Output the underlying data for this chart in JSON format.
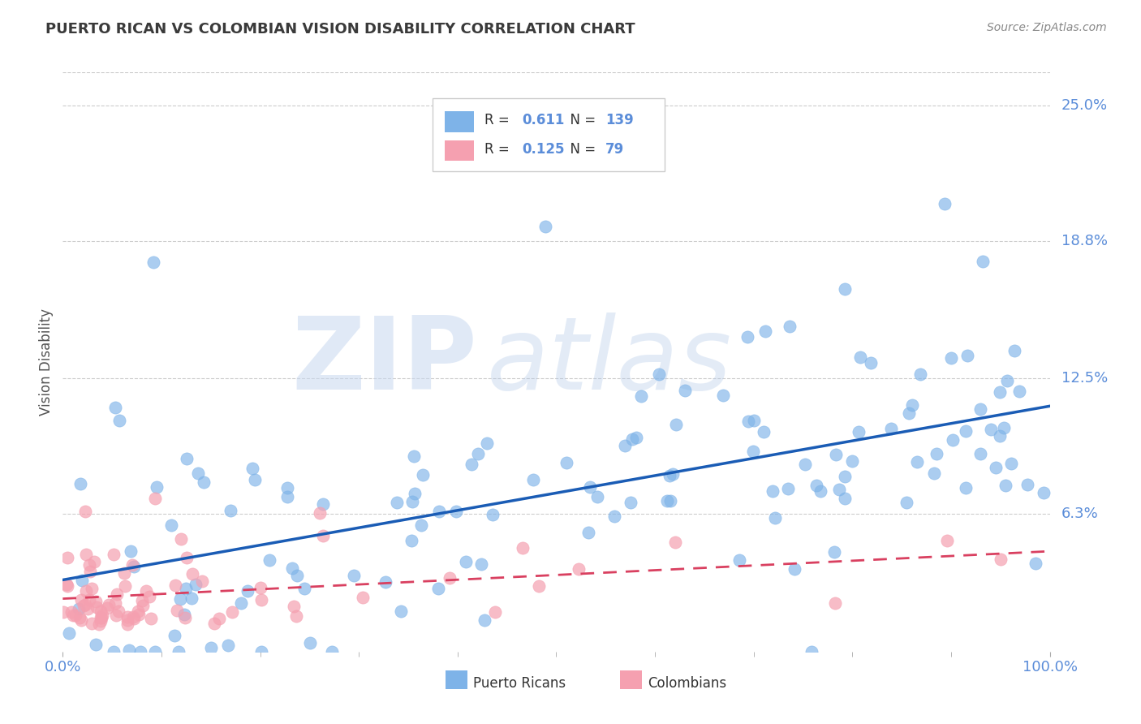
{
  "title": "PUERTO RICAN VS COLOMBIAN VISION DISABILITY CORRELATION CHART",
  "source": "Source: ZipAtlas.com",
  "ylabel": "Vision Disability",
  "xlim": [
    0.0,
    1.0
  ],
  "ylim": [
    0.0,
    0.265
  ],
  "ytick_labels": [
    "6.3%",
    "12.5%",
    "18.8%",
    "25.0%"
  ],
  "ytick_values": [
    0.063,
    0.125,
    0.188,
    0.25
  ],
  "xtick_labels": [
    "0.0%",
    "100.0%"
  ],
  "xtick_values": [
    0.0,
    1.0
  ],
  "color_pr": "#7EB3E8",
  "color_col": "#F5A0B0",
  "color_pr_line": "#1A5CB5",
  "color_col_line": "#D94060",
  "legend_r_pr": "0.611",
  "legend_n_pr": "139",
  "legend_r_col": "0.125",
  "legend_n_col": "79",
  "grid_color": "#CCCCCC",
  "background_color": "#FFFFFF",
  "title_color": "#3A3A3A",
  "axis_label_color": "#555555",
  "tick_label_color": "#5B8DD9",
  "legend_text_color": "#5B8DD9",
  "source_color": "#888888",
  "bottom_legend_color": "#333333"
}
